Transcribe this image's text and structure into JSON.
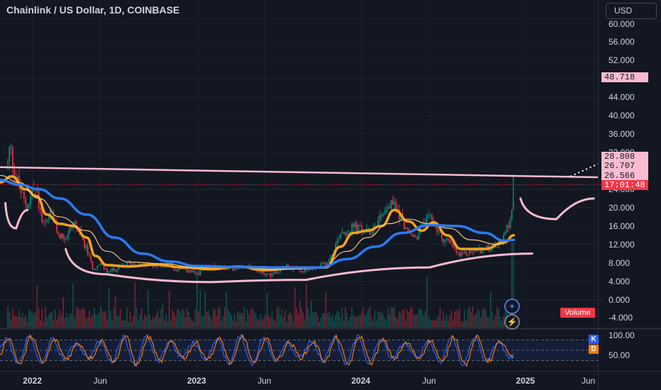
{
  "header": {
    "title": "Chainlink / US Dollar, 1D, COINBASE",
    "currency_label": "USD"
  },
  "price_labels": {
    "current_price": "48.718",
    "level_a": "28.808",
    "level_b": "26.707",
    "level_c": "26.566",
    "countdown": "17:01:48"
  },
  "volume_label": "Volume",
  "oscillator": {
    "k_label": "K",
    "d_label": "D",
    "k_color": "#2962ff",
    "d_color": "#f57c00",
    "ticks": [
      "100.00",
      "50.00"
    ]
  },
  "icons": {
    "event_icon": "compass-star-icon",
    "lightning_icon": "lightning-icon"
  },
  "colors": {
    "background": "#131722",
    "up_candle": "#089981",
    "down_candle": "#f23645",
    "ma_fast": "#f7a21b",
    "ma_slow": "#2b7bf3",
    "ma_thin": "#f5c878",
    "pattern_lines": "#f8bbd0"
  },
  "chart_data": {
    "type": "candlestick",
    "title": "Chainlink / US Dollar, 1D, COINBASE",
    "currency": "USD",
    "y_axis": {
      "ticks": [
        "60.000",
        "56.000",
        "52.000",
        "48.000",
        "44.000",
        "40.000",
        "36.000",
        "32.000",
        "28.000",
        "24.000",
        "20.000",
        "16.000",
        "12.000",
        "8.000",
        "4.000",
        "0.000",
        "-4.000"
      ],
      "range": [
        -6,
        62
      ]
    },
    "x_axis": {
      "labels": [
        {
          "text": "2022",
          "bold": true,
          "date": "2022-01-01"
        },
        {
          "text": "Jun",
          "bold": false,
          "date": "2022-06-01"
        },
        {
          "text": "2023",
          "bold": true,
          "date": "2023-01-01"
        },
        {
          "text": "Jun",
          "bold": false,
          "date": "2023-06-01"
        },
        {
          "text": "2024",
          "bold": true,
          "date": "2024-01-01"
        },
        {
          "text": "Jun",
          "bold": false,
          "date": "2024-06-01"
        },
        {
          "text": "2025",
          "bold": true,
          "date": "2025-01-01"
        },
        {
          "text": "Jun",
          "bold": false,
          "date": "2025-06-01"
        }
      ],
      "range": [
        "2021-10-20",
        "2025-06-10"
      ]
    },
    "price_path": [
      [
        "2021-11-05",
        29.5
      ],
      [
        "2021-11-10",
        33.5
      ],
      [
        "2021-11-20",
        27.5
      ],
      [
        "2021-12-01",
        24.5
      ],
      [
        "2021-12-10",
        21.5
      ],
      [
        "2021-12-20",
        20.5
      ],
      [
        "2022-01-01",
        24.5
      ],
      [
        "2022-01-10",
        22.5
      ],
      [
        "2022-01-22",
        16.0
      ],
      [
        "2022-02-01",
        16.5
      ],
      [
        "2022-02-10",
        19.0
      ],
      [
        "2022-02-20",
        15.5
      ],
      [
        "2022-03-01",
        14.0
      ],
      [
        "2022-03-15",
        13.5
      ],
      [
        "2022-04-01",
        17.0
      ],
      [
        "2022-04-15",
        14.0
      ],
      [
        "2022-05-01",
        10.5
      ],
      [
        "2022-05-12",
        7.0
      ],
      [
        "2022-06-01",
        7.5
      ],
      [
        "2022-06-15",
        6.0
      ],
      [
        "2022-07-01",
        6.5
      ],
      [
        "2022-08-01",
        8.0
      ],
      [
        "2022-09-01",
        7.5
      ],
      [
        "2022-10-01",
        7.5
      ],
      [
        "2022-11-01",
        7.8
      ],
      [
        "2022-11-10",
        6.5
      ],
      [
        "2022-12-01",
        6.5
      ],
      [
        "2022-12-31",
        5.6
      ],
      [
        "2023-01-15",
        6.5
      ],
      [
        "2023-02-15",
        7.3
      ],
      [
        "2023-03-10",
        6.5
      ],
      [
        "2023-04-15",
        7.5
      ],
      [
        "2023-05-15",
        6.5
      ],
      [
        "2023-06-15",
        5.3
      ],
      [
        "2023-07-15",
        7.3
      ],
      [
        "2023-08-20",
        6.0
      ],
      [
        "2023-09-20",
        6.8
      ],
      [
        "2023-10-15",
        8.0
      ],
      [
        "2023-11-01",
        11.0
      ],
      [
        "2023-11-15",
        15.0
      ],
      [
        "2023-12-01",
        14.8
      ],
      [
        "2023-12-15",
        16.0
      ],
      [
        "2024-01-01",
        15.0
      ],
      [
        "2024-01-20",
        14.5
      ],
      [
        "2024-02-15",
        19.0
      ],
      [
        "2024-03-11",
        21.0
      ],
      [
        "2024-03-25",
        18.5
      ],
      [
        "2024-04-15",
        14.0
      ],
      [
        "2024-05-01",
        13.5
      ],
      [
        "2024-05-20",
        17.0
      ],
      [
        "2024-06-05",
        17.5
      ],
      [
        "2024-06-25",
        13.5
      ],
      [
        "2024-07-10",
        12.8
      ],
      [
        "2024-08-05",
        9.5
      ],
      [
        "2024-09-01",
        10.5
      ],
      [
        "2024-10-01",
        11.0
      ],
      [
        "2024-11-01",
        11.8
      ],
      [
        "2024-11-15",
        14.0
      ],
      [
        "2024-12-01",
        20.0
      ],
      [
        "2024-12-05",
        24.5
      ]
    ],
    "series": [
      {
        "name": "MA fast",
        "color": "#f7a21b",
        "points": [
          [
            "2021-10-20",
            25.5
          ],
          [
            "2021-11-15",
            26.8
          ],
          [
            "2021-12-15",
            24.0
          ],
          [
            "2022-01-10",
            22.5
          ],
          [
            "2022-02-01",
            18.5
          ],
          [
            "2022-03-01",
            16.5
          ],
          [
            "2022-04-01",
            16.0
          ],
          [
            "2022-05-01",
            13.5
          ],
          [
            "2022-05-20",
            9.5
          ],
          [
            "2022-06-15",
            7.5
          ],
          [
            "2022-08-01",
            7.2
          ],
          [
            "2022-10-01",
            7.6
          ],
          [
            "2022-12-01",
            7.0
          ],
          [
            "2023-02-01",
            6.6
          ],
          [
            "2023-04-01",
            7.2
          ],
          [
            "2023-06-01",
            6.4
          ],
          [
            "2023-08-01",
            6.8
          ],
          [
            "2023-10-15",
            7.0
          ],
          [
            "2023-11-15",
            11.5
          ],
          [
            "2023-12-15",
            14.5
          ],
          [
            "2024-01-15",
            15.0
          ],
          [
            "2024-02-15",
            16.0
          ],
          [
            "2024-03-15",
            19.5
          ],
          [
            "2024-04-15",
            17.0
          ],
          [
            "2024-05-15",
            15.0
          ],
          [
            "2024-06-10",
            16.8
          ],
          [
            "2024-07-10",
            14.0
          ],
          [
            "2024-08-10",
            11.0
          ],
          [
            "2024-10-01",
            11.0
          ],
          [
            "2024-11-15",
            12.5
          ],
          [
            "2024-12-05",
            14.0
          ]
        ]
      },
      {
        "name": "MA thin",
        "color": "#f5c878",
        "points": [
          [
            "2021-10-20",
            27.0
          ],
          [
            "2021-12-01",
            25.5
          ],
          [
            "2022-01-15",
            22.0
          ],
          [
            "2022-03-01",
            18.0
          ],
          [
            "2022-05-01",
            15.0
          ],
          [
            "2022-06-15",
            10.5
          ],
          [
            "2022-08-01",
            8.2
          ],
          [
            "2022-10-15",
            7.8
          ],
          [
            "2023-01-01",
            7.0
          ],
          [
            "2023-04-01",
            7.0
          ],
          [
            "2023-07-01",
            6.6
          ],
          [
            "2023-10-01",
            6.8
          ],
          [
            "2023-12-01",
            10.5
          ],
          [
            "2024-01-15",
            13.5
          ],
          [
            "2024-03-01",
            16.5
          ],
          [
            "2024-04-15",
            17.5
          ],
          [
            "2024-06-01",
            16.5
          ],
          [
            "2024-07-15",
            15.5
          ],
          [
            "2024-09-01",
            13.0
          ],
          [
            "2024-11-01",
            12.0
          ],
          [
            "2024-12-05",
            13.0
          ]
        ]
      },
      {
        "name": "MA slow",
        "color": "#2b7bf3",
        "points": [
          [
            "2021-10-20",
            26.0
          ],
          [
            "2021-12-01",
            25.0
          ],
          [
            "2022-01-15",
            24.0
          ],
          [
            "2022-03-01",
            22.0
          ],
          [
            "2022-05-01",
            18.5
          ],
          [
            "2022-07-01",
            13.5
          ],
          [
            "2022-09-01",
            10.0
          ],
          [
            "2022-11-01",
            8.3
          ],
          [
            "2023-01-01",
            7.3
          ],
          [
            "2023-04-01",
            7.1
          ],
          [
            "2023-07-01",
            7.0
          ],
          [
            "2023-10-01",
            7.0
          ],
          [
            "2023-12-01",
            8.8
          ],
          [
            "2024-02-01",
            11.5
          ],
          [
            "2024-04-01",
            14.5
          ],
          [
            "2024-06-01",
            16.2
          ],
          [
            "2024-08-01",
            16.0
          ],
          [
            "2024-10-01",
            14.5
          ],
          [
            "2024-11-15",
            12.8
          ],
          [
            "2024-12-05",
            13.0
          ]
        ]
      }
    ],
    "drawings": {
      "resistance_line": [
        [
          "2021-10-20",
          28.8
        ],
        [
          "2025-06-10",
          26.6
        ]
      ],
      "cup_curve": [
        [
          "2022-03-15",
          11.0
        ],
        [
          "2022-06-15",
          5.5
        ],
        [
          "2023-02-01",
          3.8
        ],
        [
          "2023-09-01",
          4.3
        ],
        [
          "2024-06-01",
          7.0
        ],
        [
          "2025-01-15",
          10.0
        ]
      ],
      "left_hump": [
        [
          "2021-11-01",
          21.0
        ],
        [
          "2021-11-25",
          15.5
        ],
        [
          "2021-12-20",
          19.5
        ]
      ],
      "right_handle": [
        [
          "2024-12-20",
          22.0
        ],
        [
          "2025-03-10",
          17.5
        ],
        [
          "2025-06-01",
          22.0
        ]
      ],
      "dotted_projection": [
        [
          "2025-04-10",
          26.8
        ],
        [
          "2025-06-10",
          29.5
        ]
      ],
      "countdown_price": 25.0
    },
    "oscillator_range": [
      0,
      100
    ],
    "grid": true,
    "legend": "none"
  }
}
